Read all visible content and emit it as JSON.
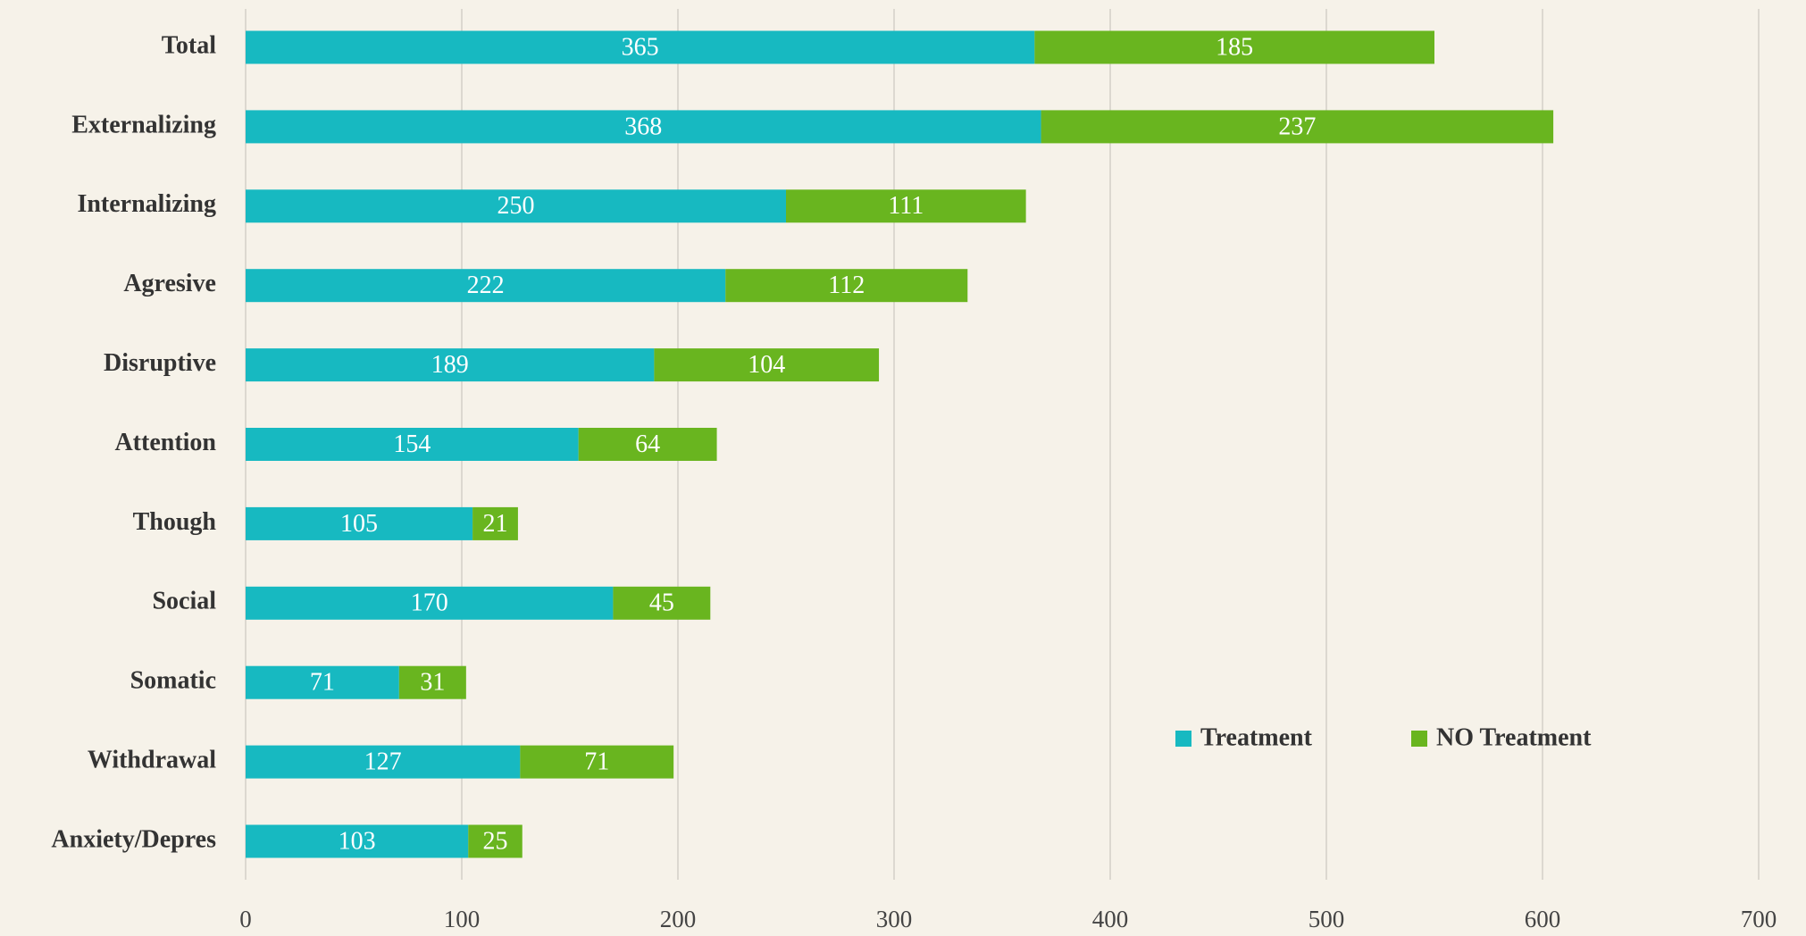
{
  "chart_data": {
    "type": "stacked_barh",
    "categories": [
      "Total",
      "Externalizing",
      "Internalizing",
      "Agresive",
      "Disruptive",
      "Attention",
      "Though",
      "Social",
      "Somatic",
      "Withdrawal",
      "Anxiety/Depres"
    ],
    "series": [
      {
        "name": "Treatment",
        "color": "#17b9c1",
        "values": [
          365,
          368,
          250,
          222,
          189,
          154,
          105,
          170,
          71,
          127,
          103
        ]
      },
      {
        "name": "NO Treatment",
        "color": "#69b51f",
        "values": [
          185,
          237,
          111,
          112,
          104,
          64,
          21,
          45,
          31,
          71,
          25
        ]
      }
    ],
    "xlim": [
      0,
      700
    ],
    "xticks": [
      0,
      100,
      200,
      300,
      400,
      500,
      600,
      700
    ],
    "grid": true
  }
}
